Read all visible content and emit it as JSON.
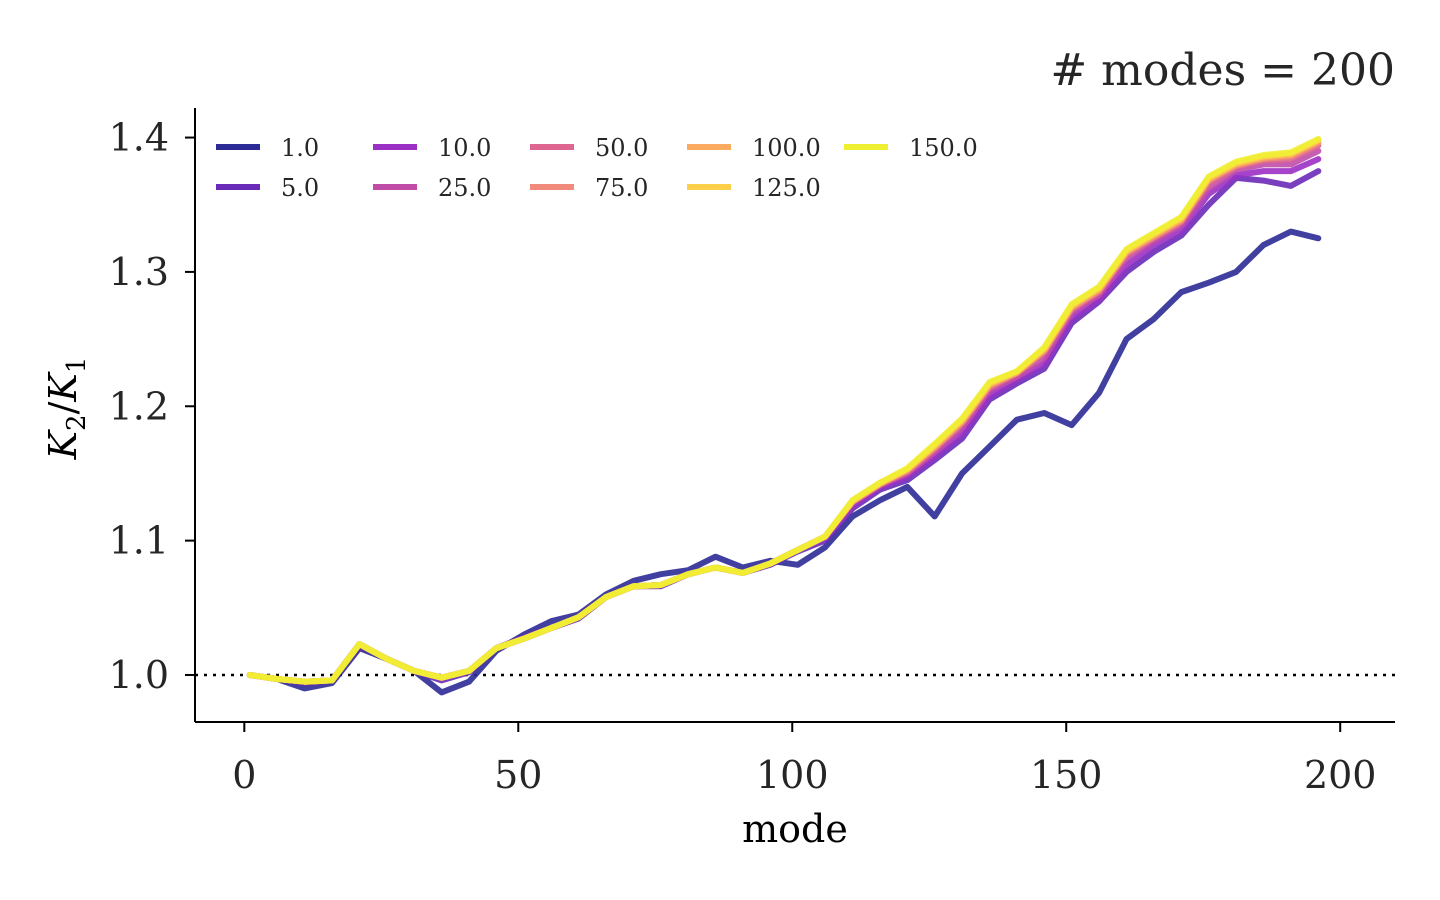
{
  "chart_data": {
    "type": "line",
    "title": "# modes = 200",
    "xlabel": "mode",
    "ylabel": "K2/K1",
    "ylabel_parts": {
      "k1": "K",
      "s1": "2",
      "slash": "/",
      "k2": "K",
      "s2": "1"
    },
    "xlim": [
      -9,
      210
    ],
    "ylim": [
      0.965,
      1.422
    ],
    "x_ticks": [
      0,
      50,
      100,
      150,
      200
    ],
    "x_tick_labels": [
      "0",
      "50",
      "100",
      "150",
      "200"
    ],
    "y_ticks": [
      1.0,
      1.1,
      1.2,
      1.3,
      1.4
    ],
    "y_tick_labels": [
      "1.0",
      "1.1",
      "1.2",
      "1.3",
      "1.4"
    ],
    "reference_line": {
      "y": 1.0,
      "style": "dotted",
      "color": "#000000"
    },
    "grid": false,
    "legend": {
      "placement": "top-left",
      "ncol": 7
    },
    "x_step": 5,
    "x_start": 1,
    "series": [
      {
        "name": "1.0",
        "color": "#2c2b96",
        "values": [
          1.0,
          0.997,
          0.99,
          0.994,
          1.02,
          1.012,
          1.003,
          0.987,
          0.995,
          1.018,
          1.03,
          1.04,
          1.045,
          1.06,
          1.07,
          1.075,
          1.078,
          1.088,
          1.08,
          1.085,
          1.082,
          1.095,
          1.118,
          1.13,
          1.14,
          1.118,
          1.15,
          1.17,
          1.19,
          1.195,
          1.186,
          1.21,
          1.25,
          1.265,
          1.285,
          1.292,
          1.3,
          1.32,
          1.33,
          1.325
        ]
      },
      {
        "name": "5.0",
        "color": "#6a2ab8",
        "values": [
          1.0,
          0.997,
          0.994,
          0.996,
          1.022,
          1.012,
          1.003,
          0.996,
          1.002,
          1.02,
          1.028,
          1.035,
          1.042,
          1.058,
          1.066,
          1.066,
          1.075,
          1.08,
          1.076,
          1.082,
          1.092,
          1.1,
          1.124,
          1.138,
          1.145,
          1.16,
          1.176,
          1.205,
          1.217,
          1.228,
          1.262,
          1.278,
          1.3,
          1.315,
          1.327,
          1.35,
          1.37,
          1.368,
          1.364,
          1.375
        ]
      },
      {
        "name": "10.0",
        "color": "#9b30c4",
        "values": [
          1.0,
          0.997,
          0.995,
          0.996,
          1.023,
          1.012,
          1.003,
          0.998,
          1.003,
          1.02,
          1.027,
          1.035,
          1.043,
          1.058,
          1.066,
          1.067,
          1.075,
          1.08,
          1.076,
          1.083,
          1.093,
          1.102,
          1.126,
          1.14,
          1.148,
          1.163,
          1.18,
          1.208,
          1.22,
          1.232,
          1.266,
          1.28,
          1.305,
          1.32,
          1.331,
          1.358,
          1.372,
          1.375,
          1.375,
          1.384
        ]
      },
      {
        "name": "25.0",
        "color": "#c04ca8",
        "values": [
          1.0,
          0.997,
          0.995,
          0.996,
          1.023,
          1.012,
          1.003,
          0.998,
          1.003,
          1.02,
          1.027,
          1.035,
          1.043,
          1.058,
          1.066,
          1.067,
          1.075,
          1.08,
          1.076,
          1.083,
          1.093,
          1.103,
          1.128,
          1.141,
          1.15,
          1.166,
          1.184,
          1.212,
          1.222,
          1.236,
          1.27,
          1.283,
          1.31,
          1.323,
          1.335,
          1.362,
          1.376,
          1.38,
          1.38,
          1.39
        ]
      },
      {
        "name": "50.0",
        "color": "#de6590",
        "values": [
          1.0,
          0.997,
          0.995,
          0.996,
          1.023,
          1.012,
          1.003,
          0.998,
          1.003,
          1.02,
          1.027,
          1.035,
          1.043,
          1.058,
          1.066,
          1.067,
          1.075,
          1.08,
          1.076,
          1.083,
          1.093,
          1.103,
          1.129,
          1.142,
          1.151,
          1.168,
          1.187,
          1.214,
          1.224,
          1.24,
          1.272,
          1.285,
          1.313,
          1.325,
          1.337,
          1.366,
          1.378,
          1.383,
          1.384,
          1.394
        ]
      },
      {
        "name": "75.0",
        "color": "#f08a7a",
        "values": [
          1.0,
          0.997,
          0.995,
          0.996,
          1.023,
          1.012,
          1.003,
          0.998,
          1.003,
          1.02,
          1.027,
          1.035,
          1.043,
          1.058,
          1.066,
          1.067,
          1.075,
          1.08,
          1.076,
          1.083,
          1.093,
          1.103,
          1.129,
          1.142,
          1.152,
          1.169,
          1.188,
          1.215,
          1.225,
          1.241,
          1.273,
          1.286,
          1.314,
          1.326,
          1.338,
          1.368,
          1.379,
          1.384,
          1.386,
          1.396
        ]
      },
      {
        "name": "100.0",
        "color": "#fbab5f",
        "values": [
          1.0,
          0.997,
          0.995,
          0.996,
          1.023,
          1.012,
          1.003,
          0.998,
          1.003,
          1.02,
          1.027,
          1.035,
          1.043,
          1.058,
          1.066,
          1.067,
          1.075,
          1.08,
          1.076,
          1.083,
          1.093,
          1.103,
          1.129,
          1.142,
          1.153,
          1.17,
          1.189,
          1.216,
          1.225,
          1.242,
          1.274,
          1.287,
          1.315,
          1.327,
          1.339,
          1.369,
          1.38,
          1.385,
          1.387,
          1.397
        ]
      },
      {
        "name": "125.0",
        "color": "#fdd04c",
        "values": [
          1.0,
          0.997,
          0.995,
          0.996,
          1.023,
          1.012,
          1.003,
          0.998,
          1.003,
          1.02,
          1.027,
          1.035,
          1.043,
          1.058,
          1.066,
          1.067,
          1.075,
          1.08,
          1.076,
          1.083,
          1.093,
          1.103,
          1.13,
          1.143,
          1.153,
          1.171,
          1.19,
          1.217,
          1.226,
          1.243,
          1.275,
          1.288,
          1.316,
          1.328,
          1.34,
          1.37,
          1.381,
          1.386,
          1.388,
          1.398
        ]
      },
      {
        "name": "150.0",
        "color": "#f0f032",
        "values": [
          1.0,
          0.997,
          0.995,
          0.996,
          1.023,
          1.012,
          1.003,
          0.998,
          1.003,
          1.02,
          1.027,
          1.035,
          1.043,
          1.058,
          1.066,
          1.067,
          1.075,
          1.08,
          1.076,
          1.083,
          1.093,
          1.103,
          1.13,
          1.143,
          1.154,
          1.172,
          1.191,
          1.218,
          1.226,
          1.244,
          1.276,
          1.289,
          1.317,
          1.329,
          1.341,
          1.371,
          1.382,
          1.387,
          1.389,
          1.399
        ]
      }
    ]
  }
}
